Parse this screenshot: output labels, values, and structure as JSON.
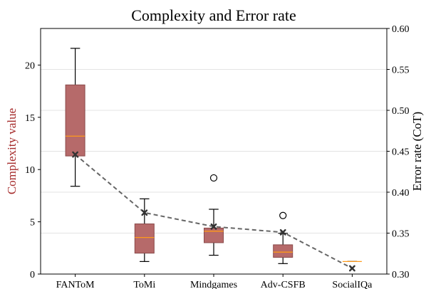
{
  "chart_data": {
    "type": "box",
    "title": "Complexity and Error rate",
    "xlabel": "",
    "ylabel_left": "Complexity value",
    "ylabel_right": "Error rate (CoT)",
    "categories": [
      "FANToM",
      "ToMi",
      "Mindgames",
      "Adv-CSFB",
      "SocialIQa"
    ],
    "ylim_left": [
      0,
      23.5
    ],
    "yticks_left": [
      0,
      5,
      10,
      15,
      20
    ],
    "ytick_labels_left": [
      "0",
      "5",
      "10",
      "15",
      "20"
    ],
    "ylim_right": [
      0.3,
      0.6
    ],
    "yticks_right": [
      0.3,
      0.35,
      0.4,
      0.45,
      0.5,
      0.55,
      0.6
    ],
    "ytick_labels_right": [
      "0.30",
      "0.35",
      "0.40",
      "0.45",
      "0.50",
      "0.55",
      "0.60"
    ],
    "grid": true,
    "boxes": [
      {
        "category": "FANToM",
        "whisker_low": 8.4,
        "q1": 11.3,
        "median": 13.2,
        "q3": 18.1,
        "whisker_high": 21.6,
        "mean": 12.6,
        "outliers": []
      },
      {
        "category": "ToMi",
        "whisker_low": 1.2,
        "q1": 2.0,
        "median": 3.5,
        "q3": 4.8,
        "whisker_high": 7.2,
        "mean": 5.8,
        "outliers": []
      },
      {
        "category": "Mindgames",
        "whisker_low": 1.8,
        "q1": 3.0,
        "median": 4.1,
        "q3": 4.4,
        "whisker_high": 6.2,
        "mean": 4.3,
        "outliers": [
          9.2
        ]
      },
      {
        "category": "Adv-CSFB",
        "whisker_low": 1.0,
        "q1": 1.6,
        "median": 2.1,
        "q3": 2.8,
        "whisker_high": 3.9,
        "mean": 3.8,
        "outliers": [
          5.6
        ]
      },
      {
        "category": "SocialIQa",
        "whisker_low": 1.2,
        "q1": 1.2,
        "median": 1.2,
        "q3": 1.2,
        "whisker_high": 1.2,
        "mean": 0.6,
        "outliers": []
      }
    ],
    "error_rate_series": {
      "values": [
        0.446,
        0.375,
        0.358,
        0.351,
        0.307
      ],
      "style": "dashed"
    },
    "colors": {
      "box_fill": "#b66a6a",
      "box_edge": "#8a4a4a",
      "median": "#ff9a1a",
      "line": "#666666",
      "marker": "#333333",
      "left_label": "#a52a2a",
      "grid": "#e3e3e3"
    }
  }
}
